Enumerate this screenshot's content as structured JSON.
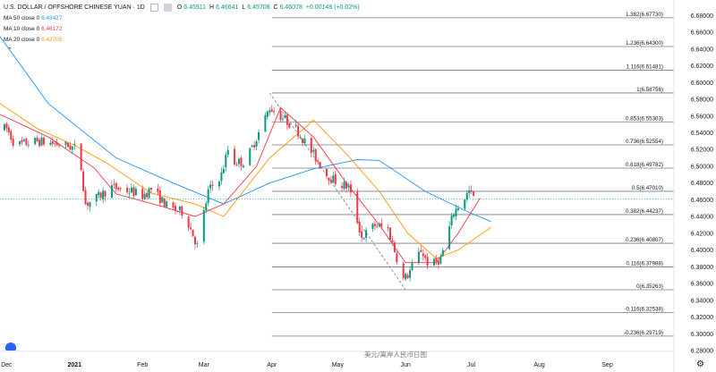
{
  "header": {
    "symbol": "U.S. DOLLAR / OFFSHORE CHINESE YUAN · 1D",
    "ohlc": [
      {
        "label": "O",
        "value": "6.45911"
      },
      {
        "label": "H",
        "value": "6.46641"
      },
      {
        "label": "L",
        "value": "6.45708"
      },
      {
        "label": "C",
        "value": "6.46078"
      },
      {
        "label": "",
        "value": "+0.00148 (+0.02%)"
      }
    ]
  },
  "indicators": [
    {
      "label": "MA 50 close 0",
      "value": "6.43427",
      "color": "#2196f3"
    },
    {
      "label": "MA 10 close 0",
      "value": "6.46172",
      "color": "#f23645"
    },
    {
      "label": "MA 20 close 0",
      "value": "6.42705",
      "color": "#ff9800"
    }
  ],
  "watermark": "美元/离岸人民币日图",
  "colors": {
    "up": "#089981",
    "down": "#f23645",
    "grid": "#787b86",
    "axis_text": "#131722"
  },
  "icons": {
    "collapse": "chevron-up-icon",
    "logo": "tradingview-logo-icon",
    "settings": "gear-icon"
  },
  "chart_data": {
    "type": "candlestick",
    "y_axis": {
      "ylim": [
        6.28,
        6.69
      ],
      "ticks": [
        "6.68000",
        "6.66000",
        "6.64000",
        "6.62000",
        "6.60000",
        "6.58000",
        "6.56000",
        "6.54000",
        "6.52000",
        "6.50000",
        "6.48000",
        "6.46000",
        "6.44000",
        "6.42000",
        "6.40000",
        "6.38000",
        "6.36000",
        "6.34000",
        "6.32000",
        "6.30000",
        "6.28000"
      ],
      "tick_values": [
        6.68,
        6.66,
        6.64,
        6.62,
        6.6,
        6.58,
        6.56,
        6.54,
        6.52,
        6.5,
        6.48,
        6.46,
        6.44,
        6.42,
        6.4,
        6.38,
        6.36,
        6.34,
        6.32,
        6.3,
        6.28
      ],
      "current_price": "6.46078",
      "current_value": 6.46078
    },
    "x_axis": {
      "labels": [
        "Dec",
        "2021",
        "Feb",
        "Mar",
        "Apr",
        "May",
        "Jun",
        "Jul",
        "Aug",
        "Sep"
      ],
      "label_positions": [
        "2020-12-01",
        "2021-01-01",
        "2021-02-01",
        "2021-03-01",
        "2021-04-01",
        "2021-05-01",
        "2021-06-01",
        "2021-07-01",
        "2021-08-01",
        "2021-09-01"
      ],
      "range": [
        "2020-11-28",
        "2021-10-01"
      ]
    },
    "fibonacci": {
      "start_date": "2021-04-01",
      "levels": [
        {
          "label": "1.382(6.67730)",
          "value": 6.6773
        },
        {
          "label": "1.236(6.64300)",
          "value": 6.643
        },
        {
          "label": "1.116(6.61481)",
          "value": 6.61481
        },
        {
          "label": "1(6.58756)",
          "value": 6.58756
        },
        {
          "label": "0.853(6.55303)",
          "value": 6.55303
        },
        {
          "label": "0.736(6.52554)",
          "value": 6.52554
        },
        {
          "label": "0.618(6.49782)",
          "value": 6.49782
        },
        {
          "label": "0.5(6.47010)",
          "value": 6.4701
        },
        {
          "label": "0.382(6.44237)",
          "value": 6.44237
        },
        {
          "label": "0.236(6.40807)",
          "value": 6.40807
        },
        {
          "label": "0.116(6.37988)",
          "value": 6.37988
        },
        {
          "label": "0(6.35263)",
          "value": 6.35263
        },
        {
          "label": "-0.116(6.32538)",
          "value": 6.32538
        },
        {
          "label": "-0.236(6.29719)",
          "value": 6.29719
        }
      ],
      "trend_from": {
        "date": "2021-03-31",
        "value": 6.58756
      },
      "trend_to": {
        "date": "2021-06-01",
        "value": 6.35263
      }
    },
    "anchors": [
      [
        "2020-12-01",
        6.545
      ],
      [
        "2020-12-05",
        6.525
      ],
      [
        "2020-12-15",
        6.53
      ],
      [
        "2020-12-28",
        6.525
      ],
      [
        "2021-01-03",
        6.52
      ],
      [
        "2021-01-06",
        6.455
      ],
      [
        "2021-01-10",
        6.46
      ],
      [
        "2021-01-18",
        6.475
      ],
      [
        "2021-01-27",
        6.47
      ],
      [
        "2021-02-01",
        6.465
      ],
      [
        "2021-02-05",
        6.473
      ],
      [
        "2021-02-13",
        6.45
      ],
      [
        "2021-02-20",
        6.445
      ],
      [
        "2021-02-26",
        6.405
      ],
      [
        "2021-03-03",
        6.47
      ],
      [
        "2021-03-09",
        6.49
      ],
      [
        "2021-03-12",
        6.52
      ],
      [
        "2021-03-15",
        6.505
      ],
      [
        "2021-03-20",
        6.505
      ],
      [
        "2021-03-26",
        6.54
      ],
      [
        "2021-03-31",
        6.57
      ],
      [
        "2021-04-05",
        6.56
      ],
      [
        "2021-04-12",
        6.545
      ],
      [
        "2021-04-21",
        6.51
      ],
      [
        "2021-04-26",
        6.49
      ],
      [
        "2021-05-01",
        6.48
      ],
      [
        "2021-05-06",
        6.475
      ],
      [
        "2021-05-12",
        6.415
      ],
      [
        "2021-05-18",
        6.43
      ],
      [
        "2021-05-24",
        6.425
      ],
      [
        "2021-05-31",
        6.365
      ],
      [
        "2021-06-02",
        6.37
      ],
      [
        "2021-06-08",
        6.4
      ],
      [
        "2021-06-12",
        6.38
      ],
      [
        "2021-06-17",
        6.39
      ],
      [
        "2021-06-23",
        6.445
      ],
      [
        "2021-06-30",
        6.47
      ],
      [
        "2021-07-03",
        6.46
      ]
    ],
    "ma_lines": [
      {
        "name": "MA 50",
        "color": "#2196f3",
        "points": [
          [
            "2020-11-28",
            6.655
          ],
          [
            "2020-12-20",
            6.575
          ],
          [
            "2021-01-20",
            6.51
          ],
          [
            "2021-02-15",
            6.48
          ],
          [
            "2021-03-10",
            6.455
          ],
          [
            "2021-03-31",
            6.48
          ],
          [
            "2021-04-20",
            6.497
          ],
          [
            "2021-05-10",
            6.508
          ],
          [
            "2021-05-20",
            6.507
          ],
          [
            "2021-06-10",
            6.47
          ],
          [
            "2021-06-30",
            6.445
          ],
          [
            "2021-07-10",
            6.434
          ]
        ]
      },
      {
        "name": "MA 20",
        "color": "#ff9800",
        "points": [
          [
            "2020-11-28",
            6.575
          ],
          [
            "2020-12-15",
            6.545
          ],
          [
            "2021-01-01",
            6.525
          ],
          [
            "2021-01-15",
            6.505
          ],
          [
            "2021-02-05",
            6.468
          ],
          [
            "2021-02-25",
            6.455
          ],
          [
            "2021-03-10",
            6.44
          ],
          [
            "2021-03-31",
            6.51
          ],
          [
            "2021-04-20",
            6.555
          ],
          [
            "2021-05-05",
            6.515
          ],
          [
            "2021-05-20",
            6.47
          ],
          [
            "2021-06-02",
            6.42
          ],
          [
            "2021-06-15",
            6.39
          ],
          [
            "2021-06-25",
            6.4
          ],
          [
            "2021-07-10",
            6.427
          ]
        ]
      },
      {
        "name": "MA 10",
        "color": "#f23645",
        "points": [
          [
            "2020-11-28",
            6.562
          ],
          [
            "2020-12-20",
            6.535
          ],
          [
            "2021-01-10",
            6.498
          ],
          [
            "2021-01-20",
            6.467
          ],
          [
            "2021-02-10",
            6.452
          ],
          [
            "2021-02-25",
            6.44
          ],
          [
            "2021-03-10",
            6.455
          ],
          [
            "2021-03-25",
            6.5
          ],
          [
            "2021-04-05",
            6.57
          ],
          [
            "2021-04-20",
            6.535
          ],
          [
            "2021-05-05",
            6.48
          ],
          [
            "2021-05-20",
            6.43
          ],
          [
            "2021-06-01",
            6.385
          ],
          [
            "2021-06-15",
            6.385
          ],
          [
            "2021-06-25",
            6.42
          ],
          [
            "2021-07-05",
            6.462
          ]
        ]
      }
    ]
  }
}
